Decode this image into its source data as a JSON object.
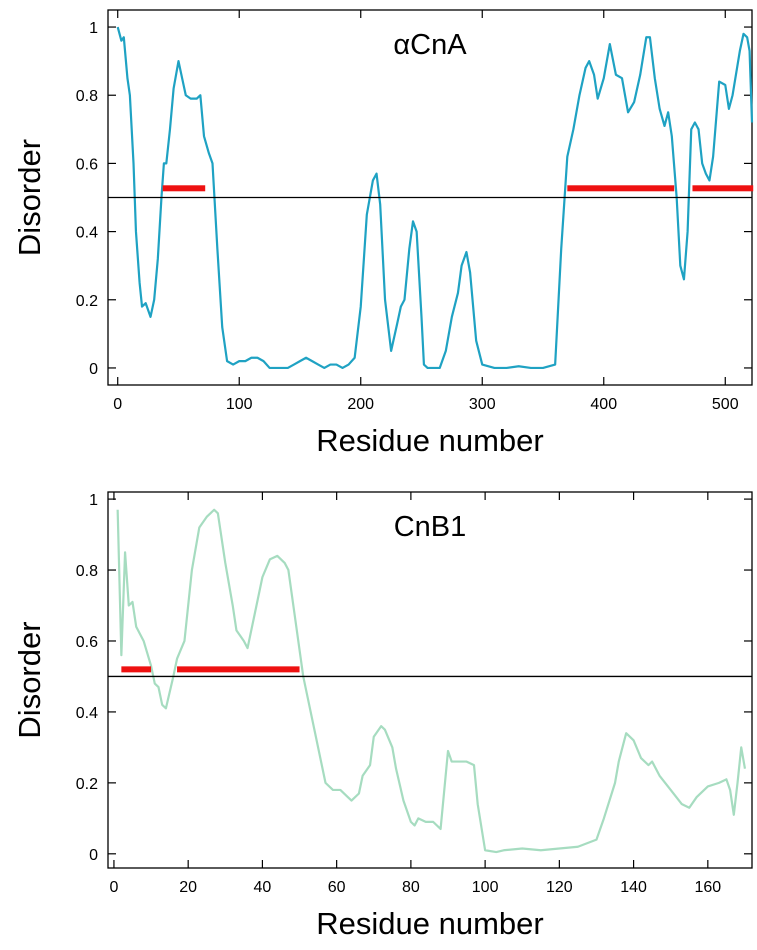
{
  "chart_data": [
    {
      "type": "line",
      "title": "αCnA",
      "x_label": "Residue number",
      "y_label": "Disorder",
      "xlim": [
        -8,
        522
      ],
      "ylim": [
        -0.05,
        1.05
      ],
      "xticks": [
        0,
        100,
        200,
        300,
        400,
        500
      ],
      "yticks": [
        0,
        0.2,
        0.4,
        0.6,
        0.8,
        1
      ],
      "threshold": 0.5,
      "threshold_color": "#000000",
      "regions": [
        [
          37,
          72
        ],
        [
          370,
          458
        ],
        [
          473,
          523
        ]
      ],
      "regions_y": 0.527,
      "region_color": "#ee1111",
      "x": [
        0,
        3,
        5,
        8,
        10,
        13,
        15,
        18,
        20,
        23,
        25,
        27,
        30,
        33,
        36,
        38,
        40,
        43,
        46,
        50,
        53,
        56,
        60,
        65,
        68,
        71,
        75,
        78,
        82,
        86,
        90,
        95,
        100,
        105,
        110,
        115,
        120,
        125,
        140,
        145,
        150,
        155,
        160,
        165,
        170,
        175,
        180,
        185,
        190,
        195,
        200,
        205,
        210,
        213,
        216,
        220,
        225,
        230,
        233,
        236,
        240,
        243,
        246,
        250,
        252,
        255,
        265,
        270,
        275,
        280,
        283,
        287,
        290,
        295,
        300,
        310,
        320,
        330,
        340,
        350,
        360,
        365,
        370,
        375,
        380,
        385,
        388,
        392,
        395,
        400,
        405,
        410,
        415,
        420,
        425,
        430,
        435,
        438,
        442,
        446,
        450,
        453,
        456,
        460,
        463,
        466,
        469,
        472,
        475,
        478,
        481,
        484,
        487,
        490,
        495,
        500,
        503,
        506,
        512,
        515,
        518,
        520,
        522
      ],
      "series": [
        {
          "color": "#1fa2c3",
          "values": [
            1.0,
            0.96,
            0.97,
            0.85,
            0.8,
            0.6,
            0.4,
            0.25,
            0.18,
            0.19,
            0.17,
            0.15,
            0.2,
            0.32,
            0.5,
            0.6,
            0.6,
            0.7,
            0.82,
            0.9,
            0.85,
            0.8,
            0.79,
            0.79,
            0.8,
            0.68,
            0.63,
            0.6,
            0.35,
            0.12,
            0.02,
            0.01,
            0.02,
            0.02,
            0.03,
            0.03,
            0.02,
            0.0,
            0.0,
            0.01,
            0.02,
            0.03,
            0.02,
            0.01,
            0.0,
            0.01,
            0.01,
            0.0,
            0.01,
            0.03,
            0.18,
            0.45,
            0.55,
            0.57,
            0.48,
            0.2,
            0.05,
            0.13,
            0.18,
            0.2,
            0.35,
            0.43,
            0.4,
            0.15,
            0.01,
            0.0,
            0.0,
            0.05,
            0.15,
            0.22,
            0.3,
            0.34,
            0.28,
            0.08,
            0.01,
            0.0,
            0.0,
            0.005,
            0.0,
            0.0,
            0.01,
            0.35,
            0.62,
            0.7,
            0.8,
            0.88,
            0.9,
            0.86,
            0.79,
            0.85,
            0.95,
            0.86,
            0.85,
            0.75,
            0.78,
            0.86,
            0.97,
            0.97,
            0.85,
            0.76,
            0.71,
            0.75,
            0.68,
            0.5,
            0.3,
            0.26,
            0.4,
            0.7,
            0.72,
            0.7,
            0.6,
            0.57,
            0.55,
            0.62,
            0.84,
            0.83,
            0.76,
            0.8,
            0.93,
            0.98,
            0.97,
            0.93,
            0.72
          ]
        }
      ]
    },
    {
      "type": "line",
      "title": "CnB1",
      "x_label": "Residue number",
      "y_label": "Disorder",
      "xlim": [
        -1.6,
        171.9
      ],
      "ylim": [
        -0.04,
        1.02
      ],
      "xticks": [
        0,
        20,
        40,
        60,
        80,
        100,
        120,
        140,
        160
      ],
      "yticks": [
        0,
        0.2,
        0.4,
        0.6,
        0.8,
        1
      ],
      "threshold": 0.5,
      "threshold_color": "#000000",
      "regions": [
        [
          2,
          10
        ],
        [
          17,
          50
        ]
      ],
      "regions_y": 0.52,
      "region_color": "#ee1111",
      "x": [
        1,
        2,
        3,
        4,
        5,
        6,
        8,
        10,
        11,
        12,
        13,
        14,
        16,
        17,
        19,
        21,
        23,
        25,
        26,
        27,
        28,
        30,
        32,
        33,
        35,
        36,
        38,
        40,
        42,
        44,
        46,
        47,
        49,
        51,
        54,
        57,
        59,
        61,
        63,
        64,
        66,
        67,
        69,
        70,
        72,
        73,
        75,
        76,
        78,
        80,
        81,
        82,
        84,
        86,
        88,
        90,
        91,
        95,
        97,
        98,
        100,
        103,
        105,
        110,
        115,
        120,
        125,
        130,
        132,
        135,
        136,
        138,
        140,
        142,
        144,
        145,
        147,
        150,
        153,
        155,
        157,
        160,
        163,
        165,
        166,
        167,
        168,
        169,
        170
      ],
      "series": [
        {
          "color": "#a6dcc0",
          "values": [
            0.97,
            0.56,
            0.85,
            0.7,
            0.71,
            0.64,
            0.6,
            0.53,
            0.48,
            0.47,
            0.42,
            0.41,
            0.5,
            0.55,
            0.6,
            0.8,
            0.92,
            0.95,
            0.96,
            0.97,
            0.96,
            0.82,
            0.7,
            0.63,
            0.6,
            0.58,
            0.68,
            0.78,
            0.83,
            0.84,
            0.82,
            0.8,
            0.65,
            0.5,
            0.35,
            0.2,
            0.18,
            0.18,
            0.16,
            0.15,
            0.17,
            0.22,
            0.25,
            0.33,
            0.36,
            0.35,
            0.3,
            0.24,
            0.15,
            0.09,
            0.08,
            0.1,
            0.09,
            0.09,
            0.07,
            0.29,
            0.26,
            0.26,
            0.25,
            0.14,
            0.01,
            0.005,
            0.01,
            0.015,
            0.01,
            0.015,
            0.02,
            0.04,
            0.1,
            0.2,
            0.26,
            0.34,
            0.32,
            0.27,
            0.25,
            0.26,
            0.22,
            0.18,
            0.14,
            0.13,
            0.16,
            0.19,
            0.2,
            0.21,
            0.18,
            0.11,
            0.2,
            0.3,
            0.24
          ]
        }
      ]
    }
  ]
}
